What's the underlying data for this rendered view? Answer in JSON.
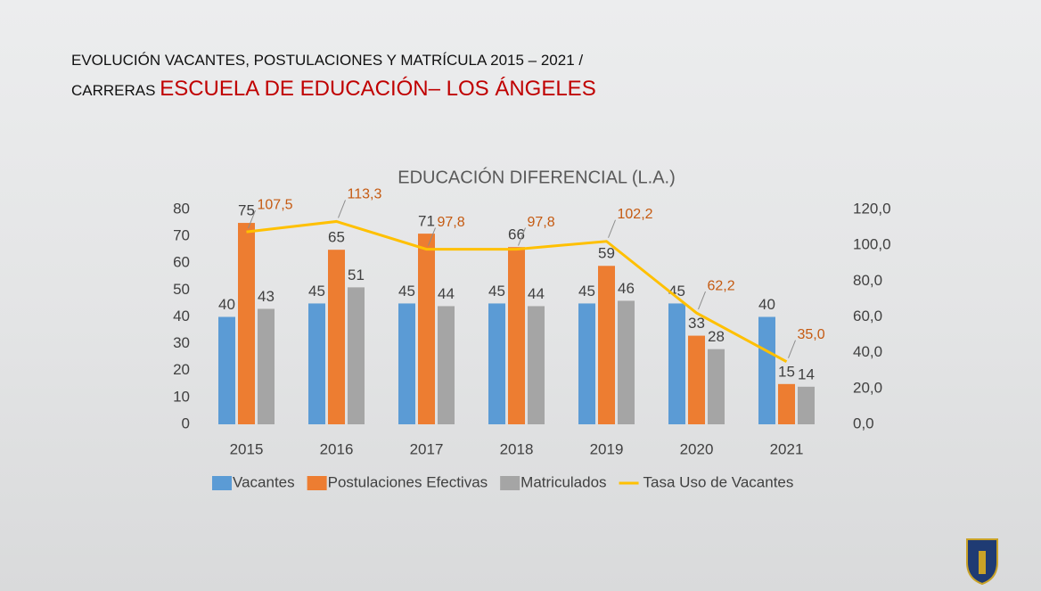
{
  "header": {
    "line1": "EVOLUCIÓN VACANTES, POSTULACIONES Y MATRÍCULA 2015  – 2021 /",
    "line2_prefix": "CARRERAS",
    "line2_highlight": "ESCUELA DE EDUCACIÓN– LOS ÁNGELES"
  },
  "chart_data": {
    "type": "bar",
    "title": "EDUCACIÓN DIFERENCIAL (L.A.)",
    "categories": [
      "2015",
      "2016",
      "2017",
      "2018",
      "2019",
      "2020",
      "2021"
    ],
    "series": [
      {
        "name": "Vacantes",
        "color": "#5b9bd5",
        "values": [
          40,
          45,
          45,
          45,
          45,
          45,
          40
        ]
      },
      {
        "name": "Postulaciones Efectivas",
        "color": "#ed7d31",
        "values": [
          75,
          65,
          71,
          66,
          59,
          33,
          15
        ]
      },
      {
        "name": "Matriculados",
        "color": "#a5a5a5",
        "values": [
          43,
          51,
          44,
          44,
          46,
          28,
          14
        ]
      },
      {
        "name": "Tasa Uso de Vacantes",
        "color": "#ffc000",
        "axis": "y2",
        "values": [
          107.5,
          113.3,
          97.8,
          97.8,
          102.2,
          62.2,
          35.0
        ],
        "value_labels": [
          "107,5",
          "113,3",
          "97,8",
          "97,8",
          "102,2",
          "62,2",
          "35,0"
        ]
      }
    ],
    "ylim": [
      0,
      80
    ],
    "yticks": [
      0,
      10,
      20,
      30,
      40,
      50,
      60,
      70,
      80
    ],
    "y2lim": [
      0,
      120
    ],
    "y2ticks": [
      {
        "value": 0,
        "label": "0,0"
      },
      {
        "value": 20,
        "label": "20,0"
      },
      {
        "value": 40,
        "label": "40,0"
      },
      {
        "value": 60,
        "label": "60,0"
      },
      {
        "value": 80,
        "label": "80,0"
      },
      {
        "value": 100,
        "label": "100,0"
      },
      {
        "value": 120,
        "label": "120,0"
      }
    ],
    "legend": "bottom"
  }
}
